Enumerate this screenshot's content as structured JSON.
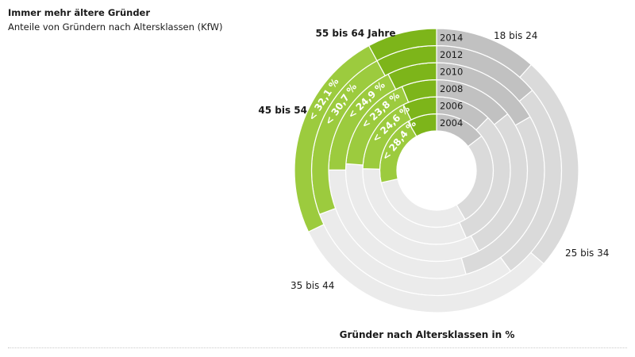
{
  "header": {
    "title": "Immer mehr ältere Gründer",
    "subtitle": "Anteile von Gründern nach Altersklassen (KfW)"
  },
  "chart_data": {
    "type": "pie",
    "title": "Immer mehr ältere Gründer",
    "subtitle": "Anteile von Gründern nach Altersklassen (KfW)",
    "xlabel": "Gründer nach Altersklassen in %",
    "rings_inner_to_outer": [
      "2004",
      "2006",
      "2008",
      "2010",
      "2012",
      "2014"
    ],
    "categories": [
      "18 bis 24",
      "25 bis 34",
      "35 bis 44",
      "45 bis 54",
      "55 bis 64 Jahre"
    ],
    "series": [
      {
        "name": "2004",
        "values": [
          14.6,
          27.0,
          30.0,
          20.0,
          8.4
        ],
        "label": "< 28,4 %"
      },
      {
        "name": "2006",
        "values": [
          12.3,
          31.1,
          32.0,
          17.2,
          7.4
        ],
        "label": "< 24,6 %"
      },
      {
        "name": "2008",
        "values": [
          14.3,
          28.0,
          33.9,
          17.6,
          6.2
        ],
        "label": "< 23,8 %"
      },
      {
        "name": "2010",
        "values": [
          16.7,
          28.9,
          29.5,
          17.5,
          7.4
        ],
        "label": "< 24,9 %"
      },
      {
        "name": "2012",
        "values": [
          13.9,
          26.0,
          29.4,
          22.8,
          7.9
        ],
        "label": "< 30,7 %"
      },
      {
        "name": "2014",
        "values": [
          11.6,
          24.8,
          31.5,
          24.2,
          7.9
        ],
        "label": "< 32,1 %"
      }
    ],
    "colors": {
      "age_18_24": "#c1c1c1",
      "age_25_34": "#dadada",
      "age_35_44": "#ebebeb",
      "age_45_54": "#9ccb3e",
      "age_55_64": "#7db51a",
      "separator": "#ffffff",
      "label_text": "#ffffff"
    }
  }
}
